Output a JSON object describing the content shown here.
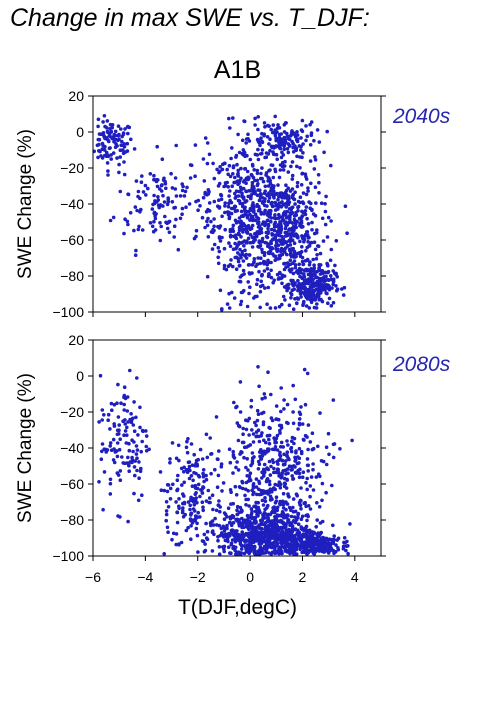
{
  "figure": {
    "title": "Change in max SWE vs. T_DJF:",
    "scenario": "A1B",
    "xlabel": "T(DJF,degC)"
  },
  "colors": {
    "points": "#1f1fbf",
    "period_label": "#2626b0",
    "axis": "#000000"
  },
  "chart_data": [
    {
      "type": "scatter",
      "period": "2040s",
      "xlabel": "T(DJF,degC)",
      "ylabel": "SWE Change (%)",
      "xlim": [
        -6,
        5
      ],
      "ylim": [
        -100,
        20
      ],
      "xticks": [
        -6,
        -4,
        -2,
        0,
        2,
        4
      ],
      "yticks": [
        -100,
        -80,
        -60,
        -40,
        -20,
        0,
        20
      ],
      "xtick_labels_shown": false,
      "grid": false,
      "point_clusters": [
        {
          "x_center": -5.3,
          "x_spread": 0.7,
          "y_center": -6,
          "y_spread": 10,
          "n": 110
        },
        {
          "x_center": -3.5,
          "x_spread": 1.4,
          "y_center": -38,
          "y_spread": 22,
          "n": 130
        },
        {
          "x_center": -0.4,
          "x_spread": 1.1,
          "y_center": -45,
          "y_spread": 35,
          "n": 400
        },
        {
          "x_center": 1.3,
          "x_spread": 1.2,
          "y_center": -55,
          "y_spread": 32,
          "n": 600
        },
        {
          "x_center": 1.2,
          "x_spread": 1.0,
          "y_center": -5,
          "y_spread": 9,
          "n": 140
        },
        {
          "x_center": 2.4,
          "x_spread": 0.7,
          "y_center": -85,
          "y_spread": 9,
          "n": 250
        }
      ]
    },
    {
      "type": "scatter",
      "period": "2080s",
      "xlabel": "T(DJF,degC)",
      "ylabel": "SWE Change (%)",
      "xlim": [
        -6,
        5
      ],
      "ylim": [
        -100,
        20
      ],
      "xticks": [
        -6,
        -4,
        -2,
        0,
        2,
        4
      ],
      "yticks": [
        -100,
        -80,
        -60,
        -40,
        -20,
        0,
        20
      ],
      "xtick_labels": [
        "−6",
        "−4",
        "−2",
        "0",
        "2",
        "4"
      ],
      "grid": false,
      "point_clusters": [
        {
          "x_center": -4.8,
          "x_spread": 0.8,
          "y_center": -35,
          "y_spread": 30,
          "n": 130
        },
        {
          "x_center": -2.2,
          "x_spread": 1.1,
          "y_center": -65,
          "y_spread": 28,
          "n": 180
        },
        {
          "x_center": 0.6,
          "x_spread": 1.4,
          "y_center": -88,
          "y_spread": 12,
          "n": 700
        },
        {
          "x_center": 1.0,
          "x_spread": 1.6,
          "y_center": -50,
          "y_spread": 32,
          "n": 450
        },
        {
          "x_center": 2.5,
          "x_spread": 0.8,
          "y_center": -94,
          "y_spread": 5,
          "n": 250
        }
      ]
    }
  ]
}
